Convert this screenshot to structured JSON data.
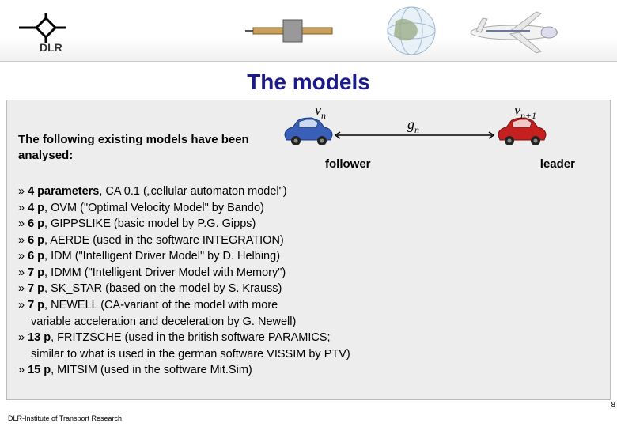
{
  "header": {
    "logo_text": "DLR"
  },
  "title": "The models",
  "intro": "The following existing models have been analysed:",
  "diagram": {
    "vn_label": "v",
    "vn_sub": "n",
    "gn_label": "g",
    "gn_sub": "n",
    "vn1_label": "v",
    "vn1_sub": "n+1",
    "follower_label": "follower",
    "leader_label": "leader",
    "car_follower_color": "#3a5fb8",
    "car_leader_color": "#c42020",
    "arrow_color": "#000000"
  },
  "models": [
    {
      "bullet": "»",
      "params": "4 parameters",
      "rest": ", CA 0.1 („cellular automaton model\")"
    },
    {
      "bullet": "»",
      "params": "4 p",
      "rest": ", OVM (\"Optimal Velocity Model\" by Bando)"
    },
    {
      "bullet": "»",
      "params": "6 p",
      "rest": ", GIPPSLIKE (basic model by P.G. Gipps)"
    },
    {
      "bullet": "»",
      "params": "6 p",
      "rest": ", AERDE (used in the software INTEGRATION)"
    },
    {
      "bullet": "»",
      "params": "6 p",
      "rest": ", IDM (\"Intelligent Driver Model\" by D. Helbing)"
    },
    {
      "bullet": "»",
      "params": "7 p",
      "rest": ", IDMM (\"Intelligent Driver Model with Memory\")"
    },
    {
      "bullet": "»",
      "params": "7 p",
      "rest": ", SK_STAR (based on the model by S. Krauss)"
    },
    {
      "bullet": "»",
      "params": "7 p",
      "rest": ", NEWELL (CA-variant of the model with more"
    },
    {
      "sub": true,
      "text": "variable acceleration and deceleration by G. Newell)"
    },
    {
      "bullet": "»",
      "params": "13 p",
      "rest": ", FRITZSCHE (used in the british software PARAMICS;"
    },
    {
      "sub": true,
      "text": "similar to what is used in the german software VISSIM by PTV)"
    },
    {
      "bullet": "»",
      "params": "15 p",
      "rest": ", MITSIM (used in the software Mit.Sim)"
    }
  ],
  "footer": "DLR-Institute of Transport Research",
  "page_number": "8"
}
